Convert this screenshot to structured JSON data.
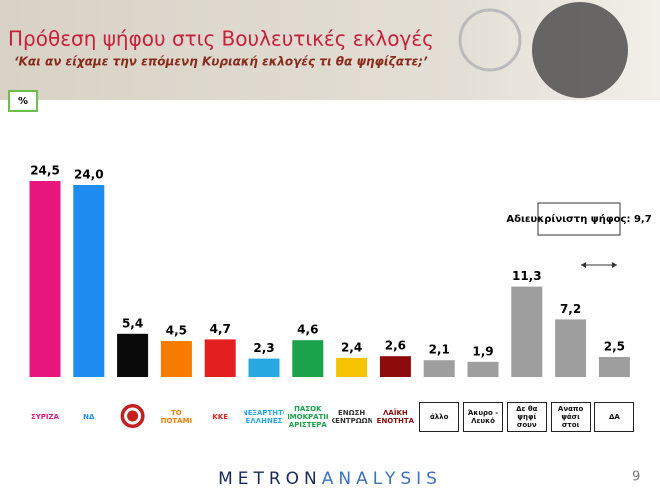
{
  "chart_data": {
    "type": "bar",
    "title": "Πρόθεση ψήφου στις Βουλευτικές εκλογές",
    "subtitle": "‘Και αν είχαμε την επόμενη Κυριακή εκλογές τι θα ψηφίζατε;’",
    "unit_label": "%",
    "categories": [
      "ΣΥΡΙΖΑ",
      "ΝΔ",
      null,
      "ΤΟ ΠΟΤΑΜΙ",
      "ΚΚΕ",
      "ΑΝΕΞΑΡΤΗΤΟΙ ΕΛΛΗΝΕΣ",
      "ΠΑΣΟΚ ΔΗΜΟΚΡΑΤΙΚΗ ΑΡΙΣΤΕΡΑ",
      "ΕΝΩΣΗ ΚΕΝΤΡΩΩΝ",
      "ΛΑΪΚΗ ΕΝΟΤΗΤΑ",
      "άλλο",
      "Άκυρο - Λευκό",
      "Δε θα ψηφί σουν",
      "Αναπο ψάσι στοι",
      "ΔΑ"
    ],
    "values": [
      24.5,
      24.0,
      5.4,
      4.5,
      4.7,
      2.3,
      4.6,
      2.4,
      2.6,
      2.1,
      1.9,
      11.3,
      7.2,
      2.5
    ],
    "value_labels": [
      "24,5",
      "24,0",
      "5,4",
      "4,5",
      "4,7",
      "2,3",
      "4,6",
      "2,4",
      "2,6",
      "2,1",
      "1,9",
      "11,3",
      "7,2",
      "2,5"
    ],
    "colors": [
      "#e8177e",
      "#1e8cf0",
      "#0a0a0a",
      "#f57c00",
      "#e41f1f",
      "#27a8e0",
      "#1aa34a",
      "#f5c400",
      "#8b0a0a",
      "#9e9e9e",
      "#9e9e9e",
      "#9e9e9e",
      "#9e9e9e",
      "#9e9e9e"
    ],
    "annotation": "Αδιευκρίνιστη ψήφος: 9,7"
  },
  "footer": {
    "brand_1": "METRON",
    "brand_2": "ANALYSIS",
    "page_number": "9"
  }
}
